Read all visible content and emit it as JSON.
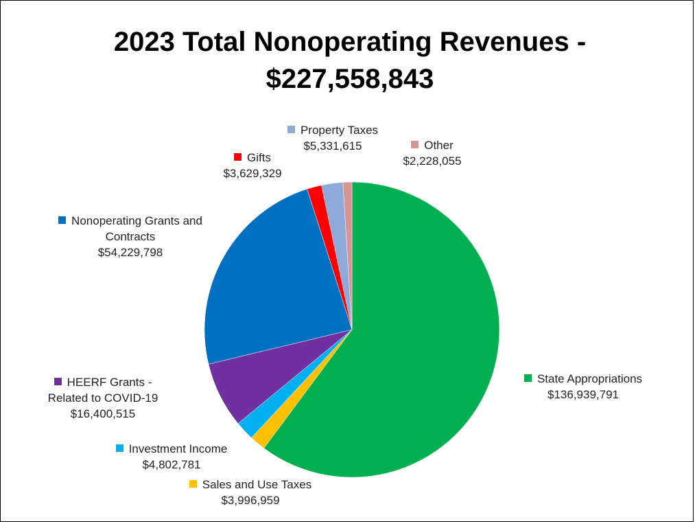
{
  "chart_data": {
    "type": "pie",
    "title": "2023 Total Nonoperating Revenues - $227,558,843",
    "categories": [
      "State Appropriations",
      "Sales and Use Taxes",
      "Investment Income",
      "HEERF Grants - Related to COVID-19",
      "Nonoperating Grants and Contracts",
      "Gifts",
      "Property Taxes",
      "Other"
    ],
    "values": [
      136939791,
      3996959,
      4802781,
      16400515,
      54229798,
      3629329,
      5331615,
      2228055
    ],
    "value_labels": [
      "$136,939,791",
      "$3,996,959",
      "$4,802,781",
      "$16,400,515",
      "$54,229,798",
      "$3,629,329",
      "$5,331,615",
      "$2,228,055"
    ],
    "colors": [
      "#00b050",
      "#ffc000",
      "#00b0f0",
      "#7030a0",
      "#0070c0",
      "#ff0000",
      "#8eaadb",
      "#d99594"
    ]
  }
}
